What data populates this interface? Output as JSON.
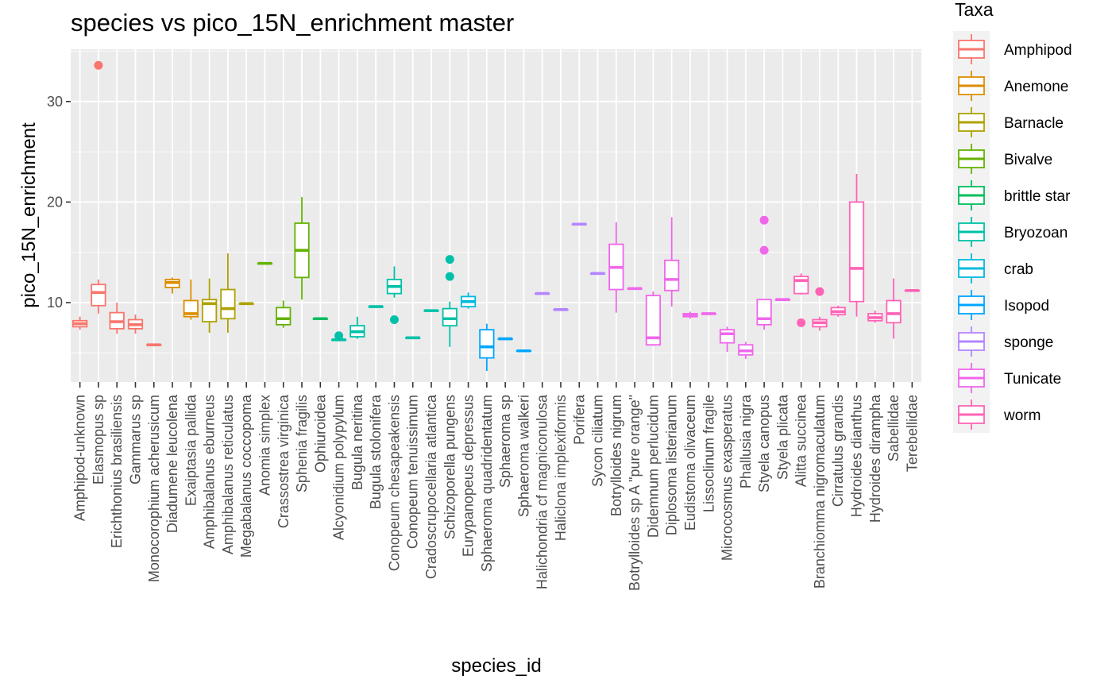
{
  "chart_data": {
    "type": "boxplot",
    "title": "species vs pico_15N_enrichment master",
    "xlabel": "species_id",
    "ylabel": "pico_15N_enrichment",
    "ylim": [
      2.1,
      35.2
    ],
    "yticks": [
      10,
      20,
      30
    ],
    "grid": true,
    "legend": {
      "title": "Taxa",
      "position": "right"
    },
    "taxa": [
      {
        "name": "Amphipod",
        "color": "#F8766D"
      },
      {
        "name": "Anemone",
        "color": "#DB8E00"
      },
      {
        "name": "Barnacle",
        "color": "#AEA200"
      },
      {
        "name": "Bivalve",
        "color": "#64B200"
      },
      {
        "name": "brittle star",
        "color": "#00BD5C"
      },
      {
        "name": "Bryozoan",
        "color": "#00C1A7"
      },
      {
        "name": "crab",
        "color": "#00BADE"
      },
      {
        "name": "Isopod",
        "color": "#00A6FF"
      },
      {
        "name": "sponge",
        "color": "#B385FF"
      },
      {
        "name": "Tunicate",
        "color": "#EF67EB"
      },
      {
        "name": "worm",
        "color": "#FF63B6"
      }
    ],
    "categories": [
      {
        "name": "Amphipod-unknown",
        "taxon": "Amphipod",
        "whisker_low": 7.3,
        "q1": 7.6,
        "median": 7.9,
        "q3": 8.2,
        "whisker_high": 8.6,
        "outliers": []
      },
      {
        "name": "Elasmopus sp",
        "taxon": "Amphipod",
        "whisker_low": 8.9,
        "q1": 9.7,
        "median": 11.0,
        "q3": 11.8,
        "whisker_high": 12.3,
        "outliers": [
          33.6
        ]
      },
      {
        "name": "Erichthonius brasiliensis",
        "taxon": "Amphipod",
        "whisker_low": 6.9,
        "q1": 7.4,
        "median": 8.1,
        "q3": 9.0,
        "whisker_high": 10.0,
        "outliers": []
      },
      {
        "name": "Gammarus sp",
        "taxon": "Amphipod",
        "whisker_low": 6.9,
        "q1": 7.4,
        "median": 7.8,
        "q3": 8.3,
        "whisker_high": 8.8,
        "outliers": []
      },
      {
        "name": "Monocorophium acherusicum",
        "taxon": "Amphipod",
        "whisker_low": 5.8,
        "q1": 5.8,
        "median": 5.8,
        "q3": 5.8,
        "whisker_high": 5.8,
        "outliers": []
      },
      {
        "name": "Diadumene leucolena",
        "taxon": "Anemone",
        "whisker_low": 10.9,
        "q1": 11.5,
        "median": 12.0,
        "q3": 12.3,
        "whisker_high": 12.5,
        "outliers": []
      },
      {
        "name": "Exaiptasia pallida",
        "taxon": "Anemone",
        "whisker_low": 8.3,
        "q1": 8.6,
        "median": 8.9,
        "q3": 10.2,
        "whisker_high": 12.3,
        "outliers": []
      },
      {
        "name": "Amphibalanus eburneus",
        "taxon": "Barnacle",
        "whisker_low": 7.0,
        "q1": 8.1,
        "median": 9.9,
        "q3": 10.3,
        "whisker_high": 12.4,
        "outliers": []
      },
      {
        "name": "Amphibalanus reticulatus",
        "taxon": "Barnacle",
        "whisker_low": 7.0,
        "q1": 8.4,
        "median": 9.4,
        "q3": 11.3,
        "whisker_high": 14.9,
        "outliers": []
      },
      {
        "name": "Megabalanus coccopoma",
        "taxon": "Barnacle",
        "whisker_low": 9.9,
        "q1": 9.9,
        "median": 9.9,
        "q3": 9.9,
        "whisker_high": 9.9,
        "outliers": []
      },
      {
        "name": "Anomia simplex",
        "taxon": "Bivalve",
        "whisker_low": 13.9,
        "q1": 13.9,
        "median": 13.9,
        "q3": 13.9,
        "whisker_high": 13.9,
        "outliers": []
      },
      {
        "name": "Crassostrea virginica",
        "taxon": "Bivalve",
        "whisker_low": 7.5,
        "q1": 7.8,
        "median": 8.4,
        "q3": 9.5,
        "whisker_high": 10.2,
        "outliers": []
      },
      {
        "name": "Sphenia fragilis",
        "taxon": "Bivalve",
        "whisker_low": 10.3,
        "q1": 12.5,
        "median": 15.2,
        "q3": 17.9,
        "whisker_high": 20.5,
        "outliers": []
      },
      {
        "name": "Ophiuroidea",
        "taxon": "brittle star",
        "whisker_low": 8.4,
        "q1": 8.4,
        "median": 8.4,
        "q3": 8.4,
        "whisker_high": 8.4,
        "outliers": []
      },
      {
        "name": "Alcyonidium polypylum",
        "taxon": "Bryozoan",
        "whisker_low": 6.3,
        "q1": 6.3,
        "median": 6.3,
        "q3": 6.3,
        "whisker_high": 6.3,
        "outliers": [
          6.7
        ]
      },
      {
        "name": "Bugula neritina",
        "taxon": "Bryozoan",
        "whisker_low": 6.4,
        "q1": 6.6,
        "median": 7.1,
        "q3": 7.7,
        "whisker_high": 8.6,
        "outliers": []
      },
      {
        "name": "Bugula stolonifera",
        "taxon": "Bryozoan",
        "whisker_low": 9.6,
        "q1": 9.6,
        "median": 9.6,
        "q3": 9.6,
        "whisker_high": 9.6,
        "outliers": []
      },
      {
        "name": "Conopeum chesapeakensis",
        "taxon": "Bryozoan",
        "whisker_low": 10.5,
        "q1": 10.9,
        "median": 11.6,
        "q3": 12.3,
        "whisker_high": 13.6,
        "outliers": [
          8.3
        ]
      },
      {
        "name": "Conopeum tenuissimum",
        "taxon": "Bryozoan",
        "whisker_low": 6.5,
        "q1": 6.5,
        "median": 6.5,
        "q3": 6.5,
        "whisker_high": 6.5,
        "outliers": []
      },
      {
        "name": "Cradoscrupocellaria atlantica",
        "taxon": "Bryozoan",
        "whisker_low": 9.2,
        "q1": 9.2,
        "median": 9.2,
        "q3": 9.2,
        "whisker_high": 9.2,
        "outliers": []
      },
      {
        "name": "Schizoporella pungens",
        "taxon": "Bryozoan",
        "whisker_low": 5.6,
        "q1": 7.7,
        "median": 8.4,
        "q3": 9.4,
        "whisker_high": 10.1,
        "outliers": [
          14.3,
          12.6
        ]
      },
      {
        "name": "Eurypanopeus depressus",
        "taxon": "crab",
        "whisker_low": 9.4,
        "q1": 9.6,
        "median": 10.1,
        "q3": 10.6,
        "whisker_high": 11.0,
        "outliers": []
      },
      {
        "name": "Sphaeroma quadridentatum",
        "taxon": "Isopod",
        "whisker_low": 3.2,
        "q1": 4.5,
        "median": 5.6,
        "q3": 7.3,
        "whisker_high": 7.9,
        "outliers": []
      },
      {
        "name": "Sphaeroma sp",
        "taxon": "Isopod",
        "whisker_low": 6.4,
        "q1": 6.4,
        "median": 6.4,
        "q3": 6.4,
        "whisker_high": 6.4,
        "outliers": []
      },
      {
        "name": "Sphaeroma walkeri",
        "taxon": "Isopod",
        "whisker_low": 5.2,
        "q1": 5.2,
        "median": 5.2,
        "q3": 5.2,
        "whisker_high": 5.2,
        "outliers": []
      },
      {
        "name": "Halichondria cf magniconulosa",
        "taxon": "sponge",
        "whisker_low": 10.9,
        "q1": 10.9,
        "median": 10.9,
        "q3": 10.9,
        "whisker_high": 10.9,
        "outliers": []
      },
      {
        "name": "Haliclona implexiformis",
        "taxon": "sponge",
        "whisker_low": 9.3,
        "q1": 9.3,
        "median": 9.3,
        "q3": 9.3,
        "whisker_high": 9.3,
        "outliers": []
      },
      {
        "name": "Porifera",
        "taxon": "sponge",
        "whisker_low": 17.8,
        "q1": 17.8,
        "median": 17.8,
        "q3": 17.8,
        "whisker_high": 17.8,
        "outliers": []
      },
      {
        "name": "Sycon ciliatum",
        "taxon": "sponge",
        "whisker_low": 12.9,
        "q1": 12.9,
        "median": 12.9,
        "q3": 12.9,
        "whisker_high": 12.9,
        "outliers": []
      },
      {
        "name": "Botrylloides nigrum",
        "taxon": "Tunicate",
        "whisker_low": 9.0,
        "q1": 11.3,
        "median": 13.5,
        "q3": 15.8,
        "whisker_high": 18.0,
        "outliers": []
      },
      {
        "name": "Botrylloides sp A \"pure orange\"",
        "taxon": "Tunicate",
        "whisker_low": 11.4,
        "q1": 11.4,
        "median": 11.4,
        "q3": 11.4,
        "whisker_high": 11.4,
        "outliers": []
      },
      {
        "name": "Didemnum perlucidum",
        "taxon": "Tunicate",
        "whisker_low": 5.7,
        "q1": 5.8,
        "median": 6.5,
        "q3": 10.7,
        "whisker_high": 11.1,
        "outliers": []
      },
      {
        "name": "Diplosoma listerianum",
        "taxon": "Tunicate",
        "whisker_low": 9.6,
        "q1": 11.2,
        "median": 12.3,
        "q3": 14.2,
        "whisker_high": 18.5,
        "outliers": []
      },
      {
        "name": "Eudistoma olivaceum",
        "taxon": "Tunicate",
        "whisker_low": 8.4,
        "q1": 8.6,
        "median": 8.7,
        "q3": 8.9,
        "whisker_high": 9.1,
        "outliers": []
      },
      {
        "name": "Lissoclinum fragile",
        "taxon": "Tunicate",
        "whisker_low": 8.9,
        "q1": 8.9,
        "median": 8.9,
        "q3": 8.9,
        "whisker_high": 8.9,
        "outliers": []
      },
      {
        "name": "Microcosmus exasperatus",
        "taxon": "Tunicate",
        "whisker_low": 5.1,
        "q1": 6.0,
        "median": 6.9,
        "q3": 7.3,
        "whisker_high": 7.6,
        "outliers": []
      },
      {
        "name": "Phallusia nigra",
        "taxon": "Tunicate",
        "whisker_low": 4.4,
        "q1": 4.8,
        "median": 5.2,
        "q3": 5.8,
        "whisker_high": 6.1,
        "outliers": []
      },
      {
        "name": "Styela canopus",
        "taxon": "Tunicate",
        "whisker_low": 7.3,
        "q1": 7.8,
        "median": 8.4,
        "q3": 10.3,
        "whisker_high": 10.3,
        "outliers": [
          18.2,
          15.2
        ]
      },
      {
        "name": "Styela plicata",
        "taxon": "Tunicate",
        "whisker_low": 10.3,
        "q1": 10.3,
        "median": 10.3,
        "q3": 10.3,
        "whisker_high": 10.3,
        "outliers": []
      },
      {
        "name": "Alitta succinea",
        "taxon": "worm",
        "whisker_low": 10.8,
        "q1": 10.9,
        "median": 12.2,
        "q3": 12.6,
        "whisker_high": 12.9,
        "outliers": [
          8.0
        ]
      },
      {
        "name": "Branchiomma nigromaculatum",
        "taxon": "worm",
        "whisker_low": 7.2,
        "q1": 7.6,
        "median": 8.0,
        "q3": 8.3,
        "whisker_high": 8.6,
        "outliers": [
          11.1
        ]
      },
      {
        "name": "Cirratulus grandis",
        "taxon": "worm",
        "whisker_low": 8.6,
        "q1": 8.8,
        "median": 9.1,
        "q3": 9.5,
        "whisker_high": 9.7,
        "outliers": []
      },
      {
        "name": "Hydroides dianthus",
        "taxon": "worm",
        "whisker_low": 8.6,
        "q1": 10.1,
        "median": 13.4,
        "q3": 20.0,
        "whisker_high": 22.8,
        "outliers": []
      },
      {
        "name": "Hydroides dirampha",
        "taxon": "worm",
        "whisker_low": 8.0,
        "q1": 8.2,
        "median": 8.5,
        "q3": 8.9,
        "whisker_high": 9.2,
        "outliers": []
      },
      {
        "name": "Sabellidae",
        "taxon": "worm",
        "whisker_low": 6.4,
        "q1": 8.0,
        "median": 8.9,
        "q3": 10.2,
        "whisker_high": 12.4,
        "outliers": []
      },
      {
        "name": "Terebellidae",
        "taxon": "worm",
        "whisker_low": 11.2,
        "q1": 11.2,
        "median": 11.2,
        "q3": 11.2,
        "whisker_high": 11.2,
        "outliers": []
      }
    ]
  }
}
